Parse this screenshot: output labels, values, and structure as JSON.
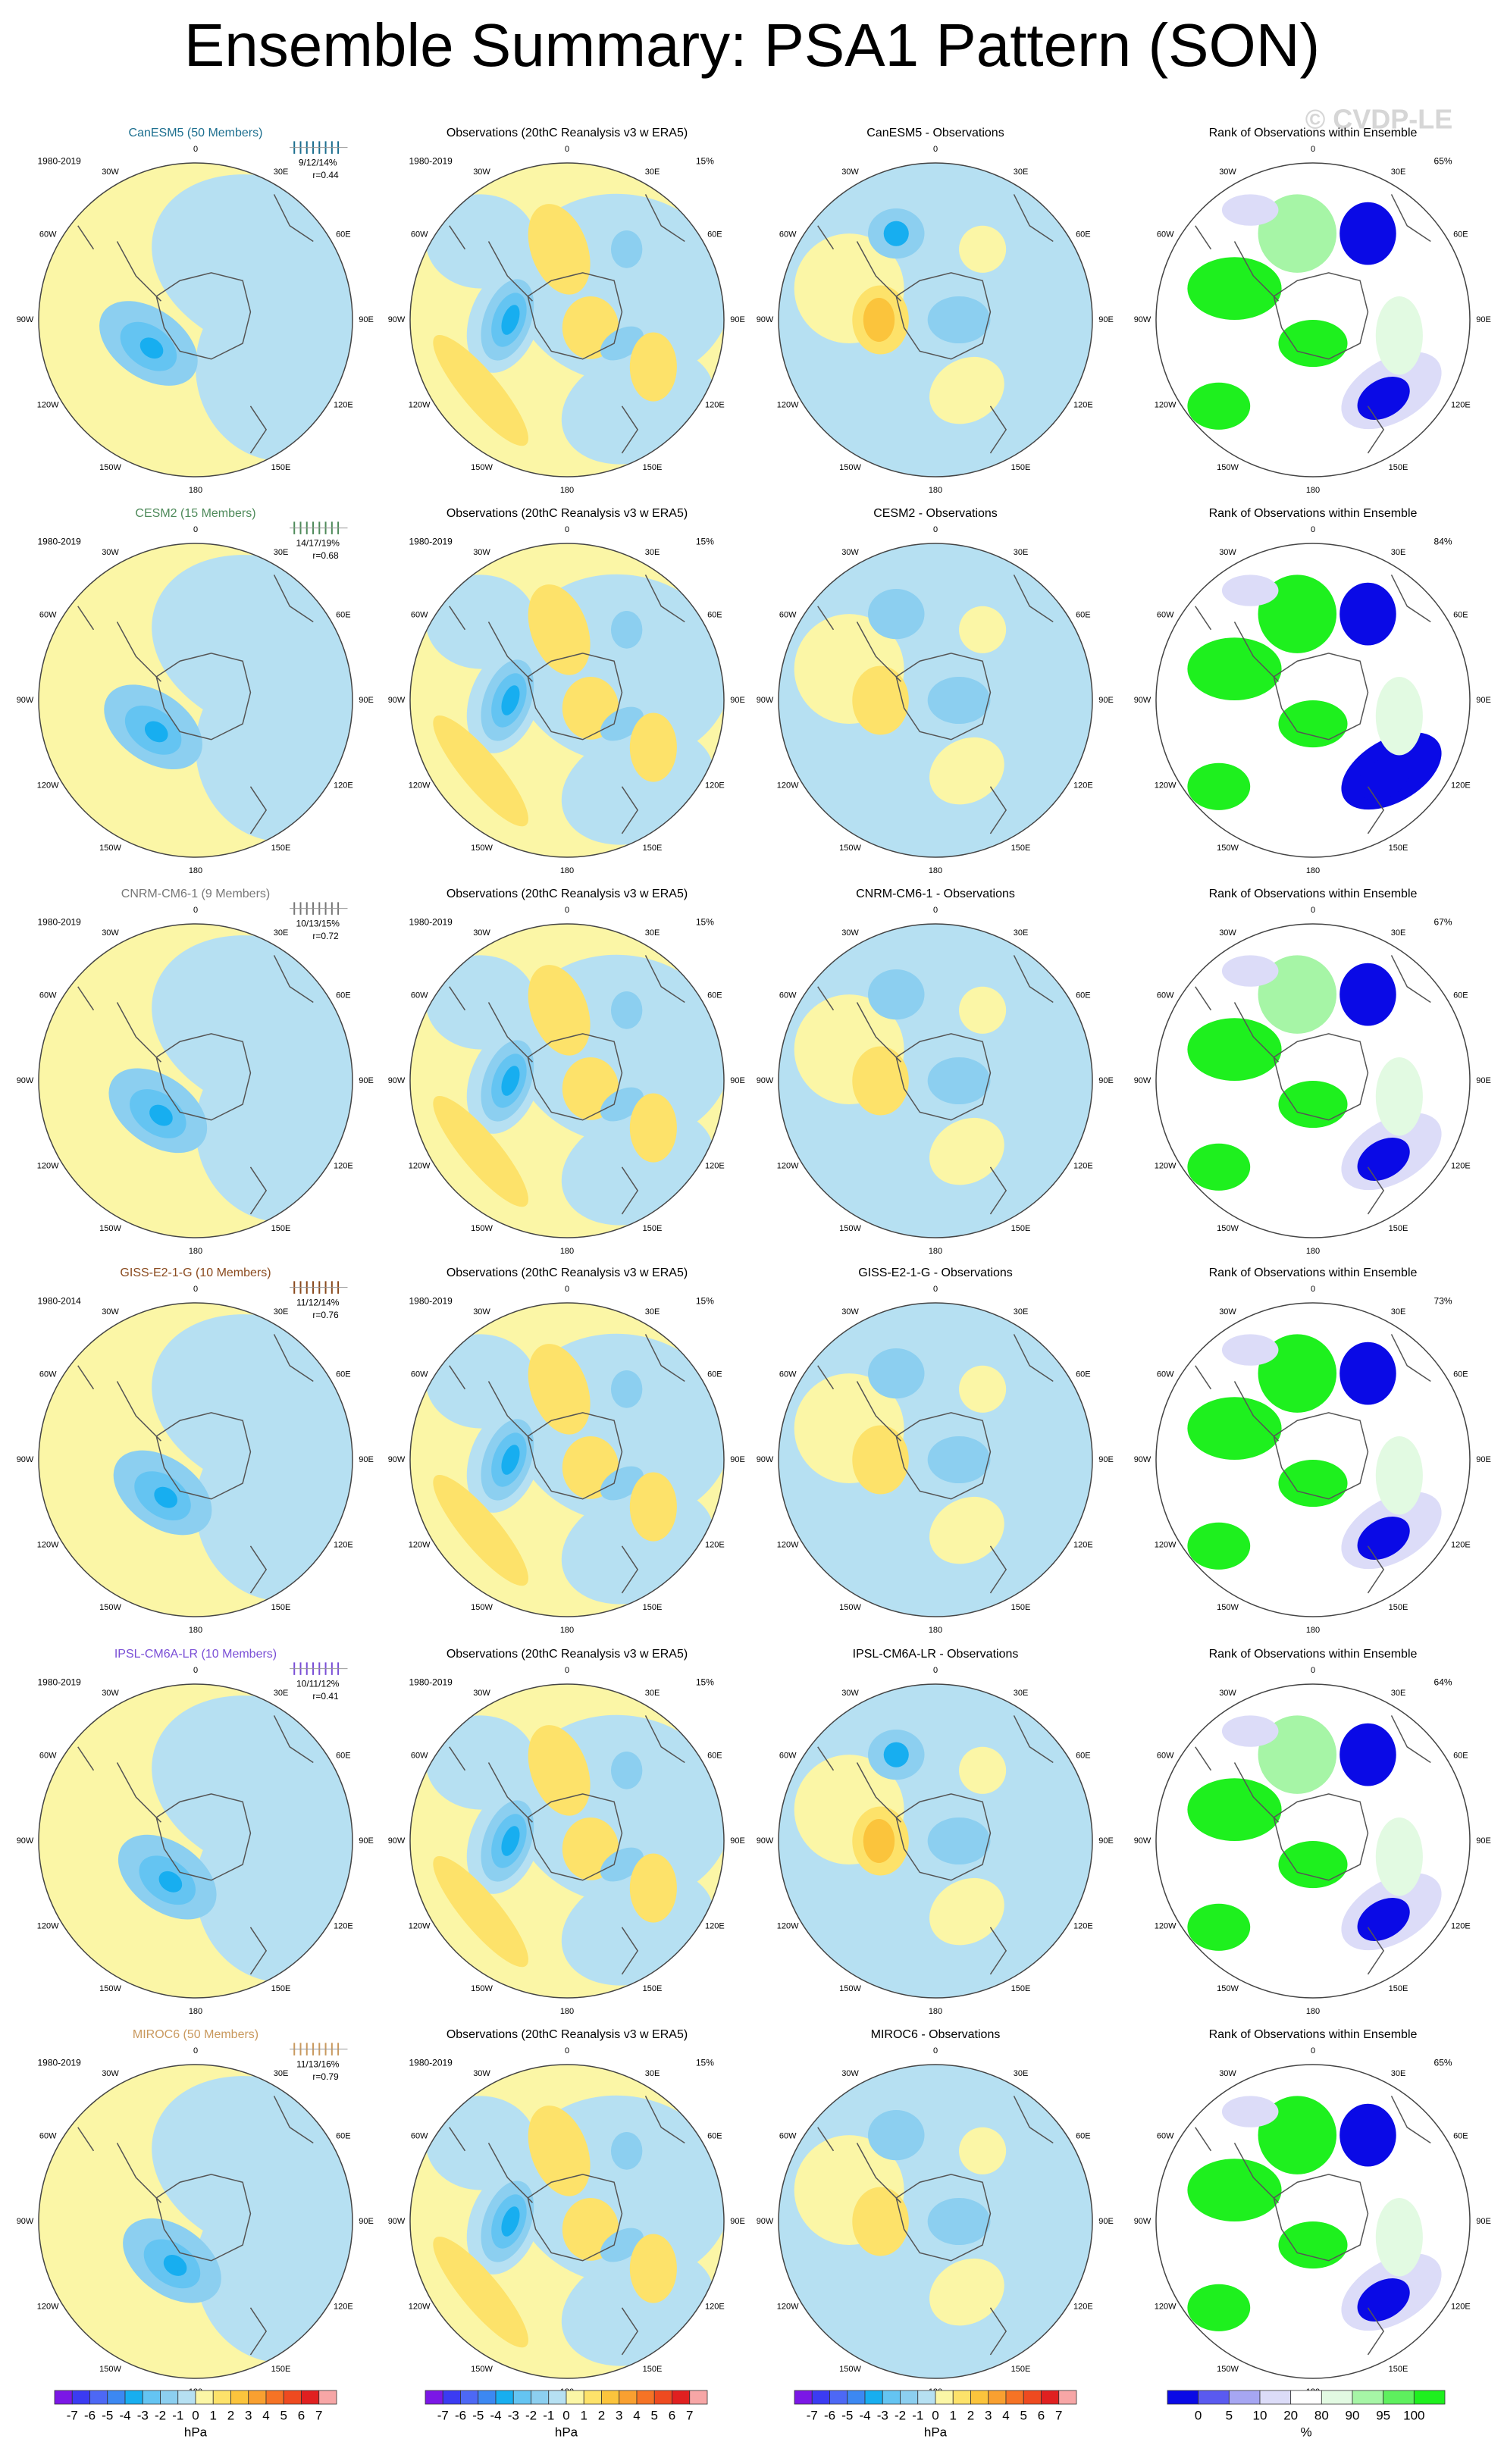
{
  "title": "Ensemble Summary: PSA1 Pattern (SON)",
  "watermark": "© CVDP-LE",
  "lon_labels": [
    "0",
    "30E",
    "60E",
    "90E",
    "120E",
    "150E",
    "180",
    "150W",
    "120W",
    "90W",
    "60W",
    "30W"
  ],
  "rows": [
    {
      "model": "CanESM5 (50 Members)",
      "model_color": "#1d6f8f",
      "years": "1980-2019",
      "stats": "9/12/14%",
      "r": "r=0.44",
      "obs_title": "Observations (20thC Reanalysis v3 w ERA5)",
      "obs_years": "1980-2019",
      "obs_pct": "15%",
      "diff_title": "CanESM5 - Observations",
      "rank_title": "Rank of Observations within Ensemble",
      "rank_pct": "65%"
    },
    {
      "model": "CESM2 (15 Members)",
      "model_color": "#4e8a5a",
      "years": "1980-2019",
      "stats": "14/17/19%",
      "r": "r=0.68",
      "obs_title": "Observations (20thC Reanalysis v3 w ERA5)",
      "obs_years": "1980-2019",
      "obs_pct": "15%",
      "diff_title": "CESM2 - Observations",
      "rank_title": "Rank of Observations within Ensemble",
      "rank_pct": "84%"
    },
    {
      "model": "CNRM-CM6-1 (9 Members)",
      "model_color": "#777777",
      "years": "1980-2019",
      "stats": "10/13/15%",
      "r": "r=0.72",
      "obs_title": "Observations (20thC Reanalysis v3 w ERA5)",
      "obs_years": "1980-2019",
      "obs_pct": "15%",
      "diff_title": "CNRM-CM6-1 - Observations",
      "rank_title": "Rank of Observations within Ensemble",
      "rank_pct": "67%"
    },
    {
      "model": "GISS-E2-1-G (10 Members)",
      "model_color": "#8a4a1e",
      "years": "1980-2014",
      "stats": "11/12/14%",
      "r": "r=0.76",
      "obs_title": "Observations (20thC Reanalysis v3 w ERA5)",
      "obs_years": "1980-2019",
      "obs_pct": "15%",
      "diff_title": "GISS-E2-1-G - Observations",
      "rank_title": "Rank of Observations within Ensemble",
      "rank_pct": "73%"
    },
    {
      "model": "IPSL-CM6A-LR (10 Members)",
      "model_color": "#7a4fd6",
      "years": "1980-2019",
      "stats": "10/11/12%",
      "r": "r=0.41",
      "obs_title": "Observations (20thC Reanalysis v3 w ERA5)",
      "obs_years": "1980-2019",
      "obs_pct": "15%",
      "diff_title": "IPSL-CM6A-LR - Observations",
      "rank_title": "Rank of Observations within Ensemble",
      "rank_pct": "64%"
    },
    {
      "model": "MIROC6 (50 Members)",
      "model_color": "#c9995e",
      "years": "1980-2019",
      "stats": "11/13/16%",
      "r": "r=0.79",
      "obs_title": "Observations (20thC Reanalysis v3 w ERA5)",
      "obs_years": "1980-2019",
      "obs_pct": "15%",
      "diff_title": "MIROC6 - Observations",
      "rank_title": "Rank of Observations within Ensemble",
      "rank_pct": "65%"
    }
  ],
  "colorbar": {
    "labels": [
      "-7",
      "-6",
      "-5",
      "-4",
      "-3",
      "-2",
      "-1",
      "0",
      "1",
      "2",
      "3",
      "4",
      "5",
      "6",
      "7"
    ],
    "colors": [
      "#7b17e6",
      "#3b3bf2",
      "#4d68f5",
      "#3c88f2",
      "#17aef0",
      "#64c4f2",
      "#8ccff0",
      "#b6e0f2",
      "#fbf6a6",
      "#fde26a",
      "#fbc43c",
      "#f9a030",
      "#f57325",
      "#ee4a20",
      "#e02020",
      "#f7a6a6"
    ],
    "units": "hPa"
  },
  "rank_colorbar": {
    "labels": [
      "0",
      "5",
      "10",
      "20",
      "80",
      "90",
      "95",
      "100"
    ],
    "colors": [
      "#0a0ae6",
      "#5a5af0",
      "#a6a6f2",
      "#dcdcf8",
      "#ffffff",
      "#e2fae2",
      "#a6f5a6",
      "#5ef05e",
      "#1ef01e"
    ],
    "units": "%"
  }
}
